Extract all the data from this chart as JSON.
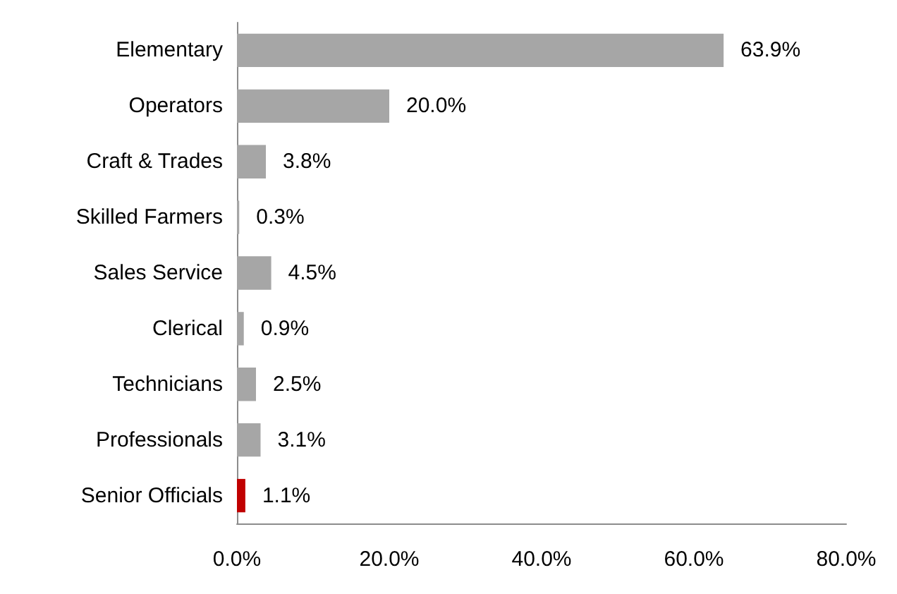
{
  "chart_data": {
    "type": "bar",
    "orientation": "horizontal",
    "categories": [
      "Elementary",
      "Operators",
      "Craft & Trades",
      "Skilled Farmers",
      "Sales Service",
      "Clerical",
      "Technicians",
      "Professionals",
      "Senior Officials"
    ],
    "values": [
      63.9,
      20.0,
      3.8,
      0.3,
      4.5,
      0.9,
      2.5,
      3.1,
      1.1
    ],
    "value_labels": [
      "63.9%",
      "20.0%",
      "3.8%",
      "0.3%",
      "4.5%",
      "0.9%",
      "2.5%",
      "3.1%",
      "1.1%"
    ],
    "colors": [
      "#a6a6a6",
      "#a6a6a6",
      "#a6a6a6",
      "#a6a6a6",
      "#a6a6a6",
      "#a6a6a6",
      "#a6a6a6",
      "#a6a6a6",
      "#c00000"
    ],
    "xlim": [
      0,
      80
    ],
    "xticks": [
      {
        "value": 0,
        "label": "0.0%"
      },
      {
        "value": 20,
        "label": "20.0%"
      },
      {
        "value": 40,
        "label": "40.0%"
      },
      {
        "value": 60,
        "label": "60.0%"
      },
      {
        "value": 80,
        "label": "80.0%"
      }
    ],
    "grid": false
  }
}
